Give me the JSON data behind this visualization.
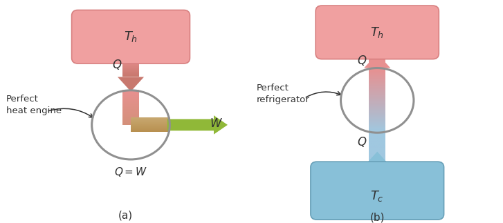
{
  "fig_width": 7.27,
  "fig_height": 3.23,
  "dpi": 100,
  "bg_color": "#ffffff",
  "hot_box_color": "#f0a0a0",
  "hot_box_edge": "#d88080",
  "cold_box_color": "#88c0d8",
  "cold_box_edge": "#68a0b8",
  "circle_edge": "#909090",
  "circle_lw": 2.2,
  "arrow_pink": "#e89090",
  "arrow_blue_light": "#a0c8e0",
  "arrow_green": "#90b838",
  "text_color": "#303030",
  "panel_a_label": "(a)",
  "panel_b_label": "(b)",
  "label_engine": "Perfect\nheat engine",
  "label_fridge": "Perfect\nrefrigerator"
}
